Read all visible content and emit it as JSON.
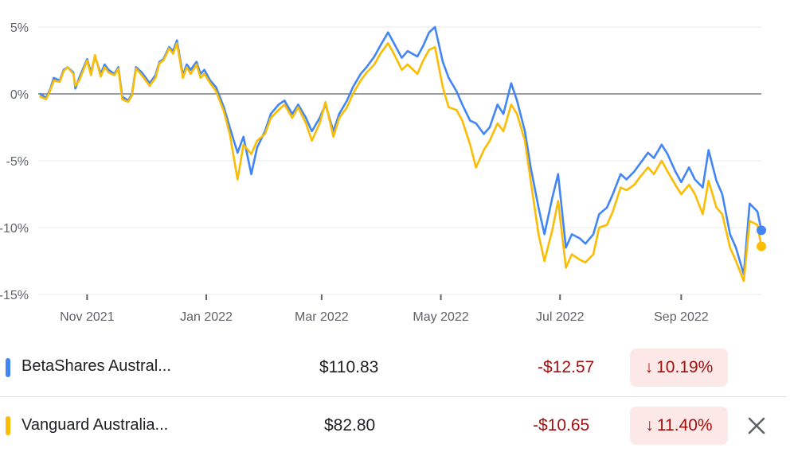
{
  "chart_data": {
    "type": "line",
    "y_unit": "%",
    "ylim": [
      -15,
      5
    ],
    "y_ticks": [
      {
        "value": 5,
        "label": "5%"
      },
      {
        "value": 0,
        "label": "0%"
      },
      {
        "value": -5,
        "label": "-5%"
      },
      {
        "value": -10,
        "label": "-10%"
      },
      {
        "value": -15,
        "label": "-15%"
      }
    ],
    "x_range": [
      "2021-10-07",
      "2022-10-12"
    ],
    "x_ticks": [
      {
        "date": "2021-11-01",
        "label": "Nov 2021"
      },
      {
        "date": "2022-01-01",
        "label": "Jan 2022"
      },
      {
        "date": "2022-03-01",
        "label": "Mar 2022"
      },
      {
        "date": "2022-05-01",
        "label": "May 2022"
      },
      {
        "date": "2022-07-01",
        "label": "Jul 2022"
      },
      {
        "date": "2022-09-01",
        "label": "Sep 2022"
      }
    ],
    "baseline": 0,
    "grid": true,
    "series": [
      {
        "name": "BetaShares Austral...",
        "color": "#4285f4",
        "points": [
          [
            "2021-10-08",
            0.0
          ],
          [
            "2021-10-11",
            -0.3
          ],
          [
            "2021-10-13",
            0.3
          ],
          [
            "2021-10-15",
            1.2
          ],
          [
            "2021-10-18",
            1.0
          ],
          [
            "2021-10-20",
            1.8
          ],
          [
            "2021-10-22",
            2.0
          ],
          [
            "2021-10-25",
            1.6
          ],
          [
            "2021-10-26",
            0.4
          ],
          [
            "2021-10-28",
            1.2
          ],
          [
            "2021-11-01",
            2.6
          ],
          [
            "2021-11-03",
            1.6
          ],
          [
            "2021-11-05",
            2.8
          ],
          [
            "2021-11-08",
            1.5
          ],
          [
            "2021-11-10",
            2.2
          ],
          [
            "2021-11-12",
            1.8
          ],
          [
            "2021-11-15",
            1.5
          ],
          [
            "2021-11-17",
            2.0
          ],
          [
            "2021-11-19",
            -0.2
          ],
          [
            "2021-11-22",
            -0.5
          ],
          [
            "2021-11-24",
            0.0
          ],
          [
            "2021-11-26",
            2.0
          ],
          [
            "2021-11-29",
            1.6
          ],
          [
            "2021-12-01",
            1.2
          ],
          [
            "2021-12-03",
            0.8
          ],
          [
            "2021-12-06",
            1.4
          ],
          [
            "2021-12-08",
            2.4
          ],
          [
            "2021-12-10",
            2.6
          ],
          [
            "2021-12-13",
            3.5
          ],
          [
            "2021-12-15",
            3.2
          ],
          [
            "2021-12-17",
            4.0
          ],
          [
            "2021-12-20",
            1.4
          ],
          [
            "2021-12-22",
            2.2
          ],
          [
            "2021-12-24",
            1.8
          ],
          [
            "2021-12-27",
            2.4
          ],
          [
            "2021-12-29",
            1.5
          ],
          [
            "2021-12-31",
            1.8
          ],
          [
            "2022-01-03",
            1.0
          ],
          [
            "2022-01-06",
            0.5
          ],
          [
            "2022-01-10",
            -1.0
          ],
          [
            "2022-01-13",
            -2.5
          ],
          [
            "2022-01-17",
            -4.4
          ],
          [
            "2022-01-20",
            -3.2
          ],
          [
            "2022-01-24",
            -6.0
          ],
          [
            "2022-01-27",
            -4.0
          ],
          [
            "2022-01-31",
            -2.8
          ],
          [
            "2022-02-03",
            -1.5
          ],
          [
            "2022-02-07",
            -0.8
          ],
          [
            "2022-02-10",
            -0.5
          ],
          [
            "2022-02-14",
            -1.5
          ],
          [
            "2022-02-17",
            -0.8
          ],
          [
            "2022-02-21",
            -1.8
          ],
          [
            "2022-02-24",
            -2.8
          ],
          [
            "2022-02-28",
            -1.8
          ],
          [
            "2022-03-03",
            -0.8
          ],
          [
            "2022-03-07",
            -2.8
          ],
          [
            "2022-03-10",
            -1.5
          ],
          [
            "2022-03-14",
            -0.5
          ],
          [
            "2022-03-17",
            0.5
          ],
          [
            "2022-03-21",
            1.5
          ],
          [
            "2022-03-24",
            2.0
          ],
          [
            "2022-03-28",
            2.8
          ],
          [
            "2022-03-31",
            3.6
          ],
          [
            "2022-04-04",
            4.6
          ],
          [
            "2022-04-07",
            3.8
          ],
          [
            "2022-04-11",
            2.7
          ],
          [
            "2022-04-14",
            3.2
          ],
          [
            "2022-04-19",
            2.8
          ],
          [
            "2022-04-22",
            3.6
          ],
          [
            "2022-04-25",
            4.6
          ],
          [
            "2022-04-28",
            5.0
          ],
          [
            "2022-05-02",
            2.4
          ],
          [
            "2022-05-05",
            1.2
          ],
          [
            "2022-05-09",
            0.2
          ],
          [
            "2022-05-12",
            -0.8
          ],
          [
            "2022-05-16",
            -2.0
          ],
          [
            "2022-05-19",
            -2.2
          ],
          [
            "2022-05-23",
            -3.0
          ],
          [
            "2022-05-26",
            -2.5
          ],
          [
            "2022-05-30",
            -0.8
          ],
          [
            "2022-06-02",
            -1.5
          ],
          [
            "2022-06-06",
            0.8
          ],
          [
            "2022-06-09",
            -0.5
          ],
          [
            "2022-06-13",
            -2.8
          ],
          [
            "2022-06-16",
            -5.5
          ],
          [
            "2022-06-20",
            -8.5
          ],
          [
            "2022-06-23",
            -10.5
          ],
          [
            "2022-06-27",
            -7.8
          ],
          [
            "2022-06-30",
            -6.0
          ],
          [
            "2022-07-04",
            -11.5
          ],
          [
            "2022-07-07",
            -10.5
          ],
          [
            "2022-07-11",
            -10.8
          ],
          [
            "2022-07-14",
            -11.2
          ],
          [
            "2022-07-18",
            -10.5
          ],
          [
            "2022-07-21",
            -9.0
          ],
          [
            "2022-07-25",
            -8.5
          ],
          [
            "2022-07-28",
            -7.5
          ],
          [
            "2022-08-01",
            -6.0
          ],
          [
            "2022-08-04",
            -6.4
          ],
          [
            "2022-08-08",
            -5.8
          ],
          [
            "2022-08-11",
            -5.2
          ],
          [
            "2022-08-15",
            -4.4
          ],
          [
            "2022-08-18",
            -4.8
          ],
          [
            "2022-08-22",
            -3.8
          ],
          [
            "2022-08-25",
            -4.5
          ],
          [
            "2022-08-29",
            -5.8
          ],
          [
            "2022-09-01",
            -6.6
          ],
          [
            "2022-09-05",
            -5.5
          ],
          [
            "2022-09-08",
            -6.4
          ],
          [
            "2022-09-12",
            -7.0
          ],
          [
            "2022-09-15",
            -4.2
          ],
          [
            "2022-09-19",
            -6.5
          ],
          [
            "2022-09-22",
            -7.5
          ],
          [
            "2022-09-26",
            -10.5
          ],
          [
            "2022-09-29",
            -11.5
          ],
          [
            "2022-10-03",
            -13.5
          ],
          [
            "2022-10-06",
            -8.2
          ],
          [
            "2022-10-10",
            -8.8
          ],
          [
            "2022-10-12",
            -10.2
          ]
        ]
      },
      {
        "name": "Vanguard Australia...",
        "color": "#fbbc04",
        "points": [
          [
            "2021-10-08",
            -0.2
          ],
          [
            "2021-10-11",
            -0.4
          ],
          [
            "2021-10-13",
            0.2
          ],
          [
            "2021-10-15",
            1.0
          ],
          [
            "2021-10-18",
            0.9
          ],
          [
            "2021-10-20",
            1.7
          ],
          [
            "2021-10-22",
            2.0
          ],
          [
            "2021-10-25",
            1.5
          ],
          [
            "2021-10-26",
            0.6
          ],
          [
            "2021-10-28",
            1.0
          ],
          [
            "2021-11-01",
            2.5
          ],
          [
            "2021-11-03",
            1.4
          ],
          [
            "2021-11-05",
            2.9
          ],
          [
            "2021-11-08",
            1.3
          ],
          [
            "2021-11-10",
            2.0
          ],
          [
            "2021-11-12",
            1.6
          ],
          [
            "2021-11-15",
            1.4
          ],
          [
            "2021-11-17",
            1.9
          ],
          [
            "2021-11-19",
            -0.4
          ],
          [
            "2021-11-22",
            -0.6
          ],
          [
            "2021-11-24",
            -0.1
          ],
          [
            "2021-11-26",
            1.9
          ],
          [
            "2021-11-29",
            1.4
          ],
          [
            "2021-12-01",
            1.0
          ],
          [
            "2021-12-03",
            0.6
          ],
          [
            "2021-12-06",
            1.2
          ],
          [
            "2021-12-08",
            2.3
          ],
          [
            "2021-12-10",
            2.5
          ],
          [
            "2021-12-13",
            3.4
          ],
          [
            "2021-12-15",
            3.0
          ],
          [
            "2021-12-17",
            3.8
          ],
          [
            "2021-12-20",
            1.2
          ],
          [
            "2021-12-22",
            2.0
          ],
          [
            "2021-12-24",
            1.5
          ],
          [
            "2021-12-27",
            2.2
          ],
          [
            "2021-12-29",
            1.2
          ],
          [
            "2021-12-31",
            1.5
          ],
          [
            "2022-01-03",
            0.8
          ],
          [
            "2022-01-06",
            0.2
          ],
          [
            "2022-01-10",
            -1.3
          ],
          [
            "2022-01-13",
            -3.0
          ],
          [
            "2022-01-17",
            -6.4
          ],
          [
            "2022-01-20",
            -3.8
          ],
          [
            "2022-01-24",
            -4.5
          ],
          [
            "2022-01-27",
            -3.5
          ],
          [
            "2022-01-31",
            -3.0
          ],
          [
            "2022-02-03",
            -1.8
          ],
          [
            "2022-02-07",
            -1.2
          ],
          [
            "2022-02-10",
            -0.8
          ],
          [
            "2022-02-14",
            -1.8
          ],
          [
            "2022-02-17",
            -1.0
          ],
          [
            "2022-02-21",
            -2.2
          ],
          [
            "2022-02-24",
            -3.5
          ],
          [
            "2022-02-28",
            -2.2
          ],
          [
            "2022-03-03",
            -0.6
          ],
          [
            "2022-03-07",
            -3.2
          ],
          [
            "2022-03-10",
            -1.8
          ],
          [
            "2022-03-14",
            -1.0
          ],
          [
            "2022-03-17",
            0.0
          ],
          [
            "2022-03-21",
            1.0
          ],
          [
            "2022-03-24",
            1.6
          ],
          [
            "2022-03-28",
            2.2
          ],
          [
            "2022-03-31",
            3.0
          ],
          [
            "2022-04-04",
            3.8
          ],
          [
            "2022-04-07",
            3.0
          ],
          [
            "2022-04-11",
            1.8
          ],
          [
            "2022-04-14",
            2.2
          ],
          [
            "2022-04-19",
            1.5
          ],
          [
            "2022-04-22",
            2.5
          ],
          [
            "2022-04-25",
            3.3
          ],
          [
            "2022-04-28",
            3.5
          ],
          [
            "2022-05-02",
            0.5
          ],
          [
            "2022-05-05",
            -1.0
          ],
          [
            "2022-05-09",
            -1.2
          ],
          [
            "2022-05-12",
            -2.0
          ],
          [
            "2022-05-16",
            -3.8
          ],
          [
            "2022-05-19",
            -5.5
          ],
          [
            "2022-05-23",
            -4.2
          ],
          [
            "2022-05-26",
            -3.5
          ],
          [
            "2022-05-30",
            -2.2
          ],
          [
            "2022-06-02",
            -2.8
          ],
          [
            "2022-06-06",
            -0.8
          ],
          [
            "2022-06-09",
            -1.5
          ],
          [
            "2022-06-13",
            -3.5
          ],
          [
            "2022-06-16",
            -6.5
          ],
          [
            "2022-06-20",
            -10.5
          ],
          [
            "2022-06-23",
            -12.5
          ],
          [
            "2022-06-27",
            -10.2
          ],
          [
            "2022-06-30",
            -8.0
          ],
          [
            "2022-07-04",
            -13.0
          ],
          [
            "2022-07-07",
            -12.0
          ],
          [
            "2022-07-11",
            -12.4
          ],
          [
            "2022-07-14",
            -12.6
          ],
          [
            "2022-07-18",
            -12.0
          ],
          [
            "2022-07-21",
            -10.0
          ],
          [
            "2022-07-25",
            -9.8
          ],
          [
            "2022-07-28",
            -8.8
          ],
          [
            "2022-08-01",
            -7.0
          ],
          [
            "2022-08-04",
            -7.2
          ],
          [
            "2022-08-08",
            -6.8
          ],
          [
            "2022-08-11",
            -6.2
          ],
          [
            "2022-08-15",
            -5.5
          ],
          [
            "2022-08-18",
            -6.0
          ],
          [
            "2022-08-22",
            -5.0
          ],
          [
            "2022-08-25",
            -5.8
          ],
          [
            "2022-08-29",
            -6.8
          ],
          [
            "2022-09-01",
            -7.5
          ],
          [
            "2022-09-05",
            -6.8
          ],
          [
            "2022-09-08",
            -7.5
          ],
          [
            "2022-09-12",
            -9.0
          ],
          [
            "2022-09-15",
            -6.5
          ],
          [
            "2022-09-19",
            -8.5
          ],
          [
            "2022-09-22",
            -9.0
          ],
          [
            "2022-09-26",
            -11.5
          ],
          [
            "2022-09-29",
            -12.5
          ],
          [
            "2022-10-03",
            -14.0
          ],
          [
            "2022-10-06",
            -9.5
          ],
          [
            "2022-10-10",
            -9.8
          ],
          [
            "2022-10-12",
            -11.4
          ]
        ]
      }
    ]
  },
  "legend_rows": [
    {
      "name": "BetaShares Austral...",
      "color": "#4285f4",
      "price": "$110.83",
      "change": "-$12.57",
      "percent_arrow": "↓",
      "percent": "10.19%"
    },
    {
      "name": "Vanguard Australia...",
      "color": "#fbbc04",
      "price": "$82.80",
      "change": "-$10.65",
      "percent_arrow": "↓",
      "percent": "11.40%",
      "close_icon": "close-icon"
    }
  ]
}
